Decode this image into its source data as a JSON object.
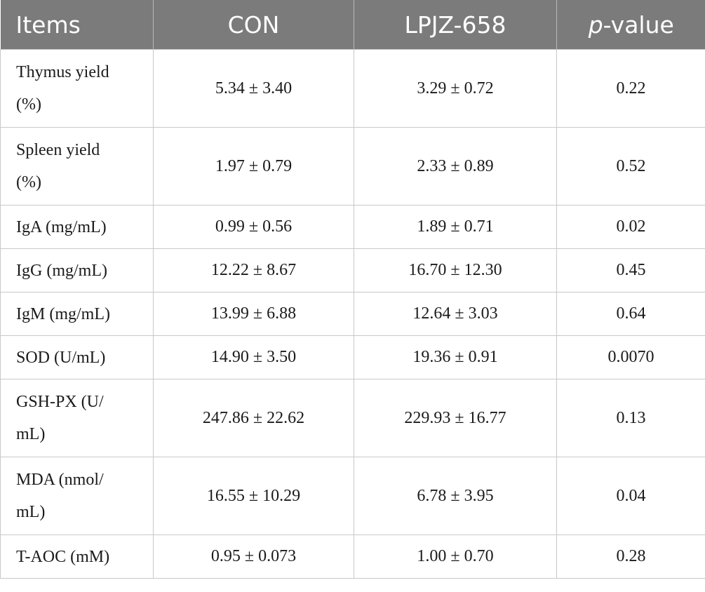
{
  "table": {
    "headers": {
      "items": "Items",
      "con": "CON",
      "lpjz": "LPJZ-658",
      "pvalue_p": "p",
      "pvalue_rest": "-value"
    },
    "rows": [
      {
        "item_line1": "Thymus yield",
        "item_line2": "(%)",
        "con": "5.34 ± 3.40",
        "lpjz": "3.29 ± 0.72",
        "p": "0.22"
      },
      {
        "item_line1": "Spleen yield",
        "item_line2": "(%)",
        "con": "1.97 ± 0.79",
        "lpjz": "2.33 ± 0.89",
        "p": "0.52"
      },
      {
        "item_line1": "IgA (mg/mL)",
        "con": "0.99 ± 0.56",
        "lpjz": "1.89 ± 0.71",
        "p": "0.02"
      },
      {
        "item_line1": "IgG (mg/mL)",
        "con": "12.22 ± 8.67",
        "lpjz": "16.70 ± 12.30",
        "p": "0.45"
      },
      {
        "item_line1": "IgM (mg/mL)",
        "con": "13.99 ± 6.88",
        "lpjz": "12.64 ± 3.03",
        "p": "0.64"
      },
      {
        "item_line1": "SOD (U/mL)",
        "con": "14.90 ± 3.50",
        "lpjz": "19.36 ± 0.91",
        "p": "0.0070"
      },
      {
        "item_line1": "GSH-PX (U/",
        "item_line2": "mL)",
        "con": "247.86 ± 22.62",
        "lpjz": "229.93 ± 16.77",
        "p": "0.13"
      },
      {
        "item_line1": "MDA (nmol/",
        "item_line2": "mL)",
        "con": "16.55 ± 10.29",
        "lpjz": "6.78 ± 3.95",
        "p": "0.04"
      },
      {
        "item_line1": "T-AOC (mM)",
        "con": "0.95 ± 0.073",
        "lpjz": "1.00 ± 0.70",
        "p": "0.28"
      }
    ]
  }
}
